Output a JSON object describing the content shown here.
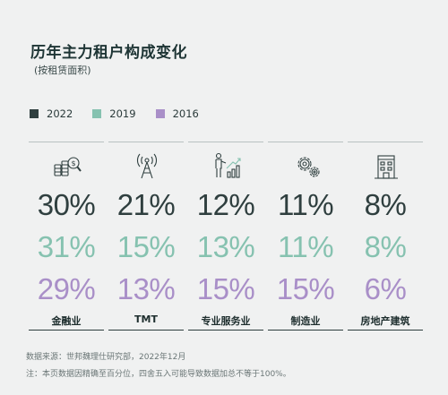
{
  "title": "历年主力租户构成变化",
  "subtitle": "(按租赁面积)",
  "legend": [
    {
      "label": "2022",
      "color": "#2f3f3f"
    },
    {
      "label": "2019",
      "color": "#86c2b0"
    },
    {
      "label": "2016",
      "color": "#a98fc8"
    }
  ],
  "chart_data": {
    "type": "table",
    "title": "历年主力租户构成变化",
    "subtitle": "(按租赁面积)",
    "categories": [
      "金融业",
      "TMT",
      "专业服务业",
      "制造业",
      "房地产建筑"
    ],
    "series": [
      {
        "name": "2022",
        "values": [
          "30%",
          "21%",
          "12%",
          "11%",
          "8%"
        ]
      },
      {
        "name": "2019",
        "values": [
          "31%",
          "15%",
          "13%",
          "11%",
          "8%"
        ]
      },
      {
        "name": "2016",
        "values": [
          "29%",
          "13%",
          "15%",
          "15%",
          "6%"
        ]
      }
    ]
  },
  "icons": [
    "finance-icon",
    "tmt-antenna-icon",
    "professional-services-icon",
    "manufacturing-gear-icon",
    "real-estate-building-icon"
  ],
  "colors": {
    "dark": "#2f3f3f",
    "green": "#86c2b0",
    "purple": "#a98fc8"
  },
  "source": "数据来源：世邦魏理仕研究部，2022年12月",
  "note": "注：本页数据因精确至百分位，四舍五入可能导致数据加总不等于100%。"
}
